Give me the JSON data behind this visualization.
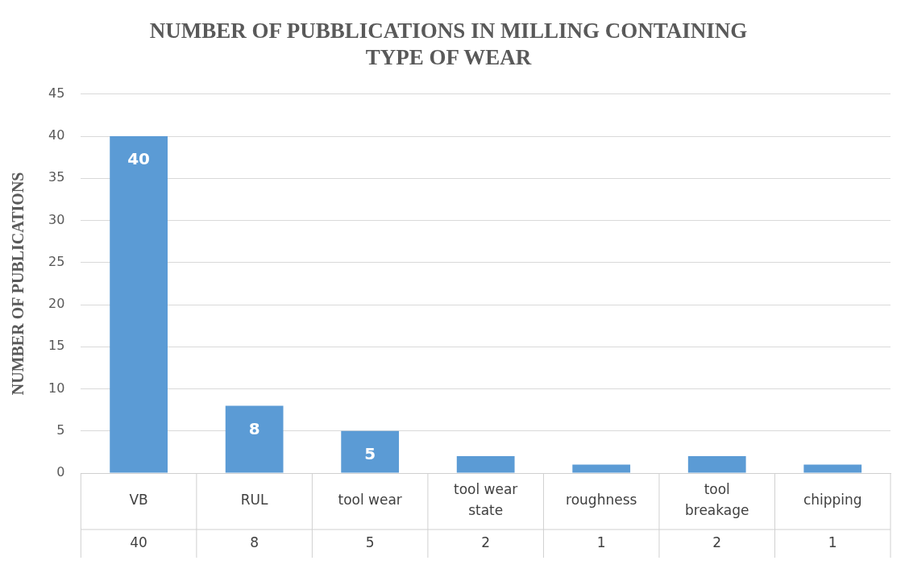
{
  "chart_data": {
    "type": "bar",
    "title": "NUMBER OF PUBBLICATIONS IN MILLING CONTAINING TYPE OF WEAR",
    "ylabel": "NUMBER OF PUBLICATIONS",
    "categories": [
      "VB",
      "RUL",
      "tool wear",
      "tool wear state",
      "roughness",
      "tool breakage",
      "chipping"
    ],
    "values": [
      40,
      8,
      5,
      2,
      1,
      2,
      1
    ],
    "color": "#5b9bd5",
    "value_labels": [
      "40",
      "8",
      "5",
      "2",
      "1",
      "2",
      "1"
    ],
    "data_labels": true,
    "ylim": [
      0,
      45
    ],
    "yticks": [
      0,
      5,
      10,
      15,
      20,
      25,
      30,
      35,
      40,
      45
    ],
    "grid": "y"
  }
}
